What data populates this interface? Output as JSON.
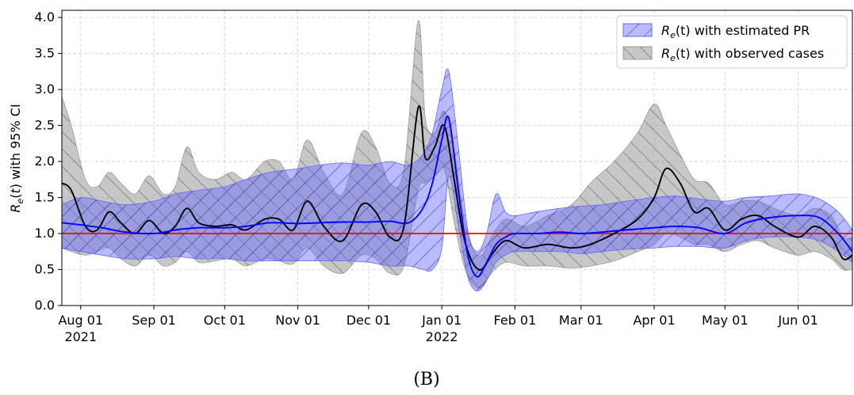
{
  "chart_data": {
    "type": "area",
    "ylabel": "R_e(t) with 95% CI",
    "ylim": [
      0.0,
      4.1
    ],
    "yticks": [
      "0.0",
      "0.5",
      "1.0",
      "1.5",
      "2.0",
      "2.5",
      "3.0",
      "3.5",
      "4.0"
    ],
    "xrange": [
      "2021-07-24",
      "2022-06-24"
    ],
    "xticks": [
      {
        "date": "2021-08-01",
        "label": "Aug 01",
        "sub": "2021"
      },
      {
        "date": "2021-09-01",
        "label": "Sep 01",
        "sub": ""
      },
      {
        "date": "2021-10-01",
        "label": "Oct 01",
        "sub": ""
      },
      {
        "date": "2021-11-01",
        "label": "Nov 01",
        "sub": ""
      },
      {
        "date": "2021-12-01",
        "label": "Dec 01",
        "sub": ""
      },
      {
        "date": "2022-01-01",
        "label": "Jan 01",
        "sub": "2022"
      },
      {
        "date": "2022-02-01",
        "label": "Feb 01",
        "sub": ""
      },
      {
        "date": "2022-03-01",
        "label": "Mar 01",
        "sub": ""
      },
      {
        "date": "2022-04-01",
        "label": "Apr 01",
        "sub": ""
      },
      {
        "date": "2022-05-01",
        "label": "May 01",
        "sub": ""
      },
      {
        "date": "2022-06-01",
        "label": "Jun 01",
        "sub": ""
      }
    ],
    "grid": true,
    "legend_position": "top-right",
    "reference_line": {
      "y": 1.0,
      "color": "#ff0000"
    },
    "series": [
      {
        "name": "R_e(t) with estimated PR",
        "legend_label_main": "R",
        "legend_label_sub": "e",
        "legend_label_rest": "(t) with estimated PR",
        "color": "#0000ff",
        "fill": "#6666ff",
        "x": [
          "2021-07-24",
          "2021-08-01",
          "2021-08-10",
          "2021-08-20",
          "2021-09-01",
          "2021-09-10",
          "2021-09-20",
          "2021-10-01",
          "2021-10-10",
          "2021-10-20",
          "2021-11-01",
          "2021-11-10",
          "2021-11-20",
          "2021-12-01",
          "2021-12-10",
          "2021-12-18",
          "2021-12-24",
          "2021-12-28",
          "2022-01-01",
          "2022-01-04",
          "2022-01-08",
          "2022-01-12",
          "2022-01-16",
          "2022-01-20",
          "2022-01-24",
          "2022-01-28",
          "2022-02-01",
          "2022-02-10",
          "2022-02-20",
          "2022-03-01",
          "2022-03-10",
          "2022-03-20",
          "2022-04-01",
          "2022-04-10",
          "2022-04-20",
          "2022-05-01",
          "2022-05-10",
          "2022-05-20",
          "2022-06-01",
          "2022-06-10",
          "2022-06-18",
          "2022-06-24"
        ],
        "y": [
          1.15,
          1.12,
          1.08,
          1.02,
          1.0,
          1.05,
          1.08,
          1.08,
          1.1,
          1.15,
          1.14,
          1.15,
          1.16,
          1.16,
          1.17,
          1.15,
          1.35,
          1.7,
          2.3,
          2.6,
          1.6,
          0.7,
          0.4,
          0.6,
          0.85,
          0.95,
          1.0,
          1.0,
          1.02,
          1.0,
          1.02,
          1.05,
          1.08,
          1.1,
          1.08,
          1.0,
          1.15,
          1.22,
          1.25,
          1.22,
          1.0,
          0.75
        ],
        "lower": [
          0.8,
          0.75,
          0.7,
          0.65,
          0.65,
          0.68,
          0.65,
          0.65,
          0.62,
          0.62,
          0.62,
          0.62,
          0.62,
          0.6,
          0.55,
          0.55,
          0.5,
          0.5,
          0.8,
          1.8,
          1.1,
          0.4,
          0.2,
          0.35,
          0.6,
          0.7,
          0.75,
          0.75,
          0.75,
          0.72,
          0.75,
          0.78,
          0.8,
          0.82,
          0.82,
          0.8,
          0.9,
          0.95,
          0.95,
          0.9,
          0.75,
          0.6
        ],
        "upper": [
          1.4,
          1.5,
          1.45,
          1.4,
          1.45,
          1.55,
          1.6,
          1.65,
          1.75,
          1.85,
          1.9,
          1.95,
          1.98,
          1.95,
          2.0,
          1.95,
          2.1,
          2.4,
          3.0,
          3.25,
          2.2,
          1.05,
          0.75,
          1.0,
          1.55,
          1.3,
          1.25,
          1.3,
          1.35,
          1.38,
          1.4,
          1.45,
          1.5,
          1.52,
          1.48,
          1.45,
          1.5,
          1.52,
          1.55,
          1.48,
          1.3,
          1.05
        ]
      },
      {
        "name": "R_e(t) with observed cases",
        "legend_label_main": "R",
        "legend_label_sub": "e",
        "legend_label_rest": "(t) with observed cases",
        "color": "#000000",
        "fill": "#999999",
        "x": [
          "2021-07-24",
          "2021-07-28",
          "2021-08-03",
          "2021-08-08",
          "2021-08-13",
          "2021-08-18",
          "2021-08-24",
          "2021-08-30",
          "2021-09-05",
          "2021-09-10",
          "2021-09-15",
          "2021-09-20",
          "2021-09-27",
          "2021-10-04",
          "2021-10-10",
          "2021-10-18",
          "2021-10-24",
          "2021-10-30",
          "2021-11-05",
          "2021-11-12",
          "2021-11-20",
          "2021-11-28",
          "2021-12-04",
          "2021-12-10",
          "2021-12-16",
          "2021-12-22",
          "2021-12-25",
          "2021-12-29",
          "2022-01-02",
          "2022-01-06",
          "2022-01-10",
          "2022-01-14",
          "2022-01-18",
          "2022-01-22",
          "2022-01-28",
          "2022-02-05",
          "2022-02-15",
          "2022-02-25",
          "2022-03-05",
          "2022-03-15",
          "2022-03-25",
          "2022-04-01",
          "2022-04-06",
          "2022-04-12",
          "2022-04-18",
          "2022-04-24",
          "2022-05-01",
          "2022-05-08",
          "2022-05-15",
          "2022-05-22",
          "2022-06-01",
          "2022-06-08",
          "2022-06-15",
          "2022-06-20",
          "2022-06-24"
        ],
        "y": [
          1.7,
          1.6,
          1.1,
          1.05,
          1.3,
          1.15,
          1.0,
          1.18,
          1.0,
          1.1,
          1.35,
          1.15,
          1.1,
          1.12,
          1.05,
          1.2,
          1.2,
          1.05,
          1.45,
          1.1,
          0.9,
          1.4,
          1.3,
          0.95,
          1.1,
          2.75,
          2.05,
          2.2,
          2.5,
          1.8,
          1.0,
          0.6,
          0.5,
          0.7,
          0.9,
          0.8,
          0.85,
          0.8,
          0.85,
          1.0,
          1.2,
          1.5,
          1.9,
          1.7,
          1.3,
          1.35,
          1.05,
          1.2,
          1.25,
          1.1,
          0.95,
          1.1,
          0.95,
          0.65,
          0.7
        ],
        "lower": [
          0.8,
          0.75,
          0.7,
          0.75,
          0.8,
          0.65,
          0.55,
          0.7,
          0.55,
          0.6,
          0.75,
          0.6,
          0.62,
          0.65,
          0.55,
          0.65,
          0.62,
          0.58,
          0.8,
          0.55,
          0.45,
          0.7,
          0.65,
          0.45,
          0.55,
          1.6,
          1.7,
          1.8,
          1.9,
          1.2,
          0.6,
          0.3,
          0.25,
          0.45,
          0.6,
          0.55,
          0.55,
          0.52,
          0.55,
          0.62,
          0.75,
          0.85,
          1.0,
          0.95,
          0.85,
          0.85,
          0.75,
          0.85,
          0.9,
          0.8,
          0.7,
          0.75,
          0.65,
          0.5,
          0.5
        ],
        "upper": [
          2.9,
          2.5,
          1.75,
          1.65,
          1.85,
          1.7,
          1.55,
          1.8,
          1.55,
          1.65,
          2.2,
          1.85,
          1.75,
          1.85,
          1.75,
          2.0,
          2.0,
          1.75,
          2.3,
          1.85,
          1.55,
          2.4,
          2.2,
          1.7,
          1.9,
          3.95,
          2.6,
          2.4,
          2.7,
          2.2,
          1.3,
          0.8,
          0.7,
          0.95,
          1.2,
          1.1,
          1.25,
          1.4,
          1.7,
          2.0,
          2.4,
          2.8,
          2.5,
          2.1,
          1.75,
          1.7,
          1.4,
          1.45,
          1.45,
          1.35,
          1.25,
          1.35,
          1.25,
          0.95,
          0.95
        ]
      }
    ]
  },
  "caption": "(B)"
}
